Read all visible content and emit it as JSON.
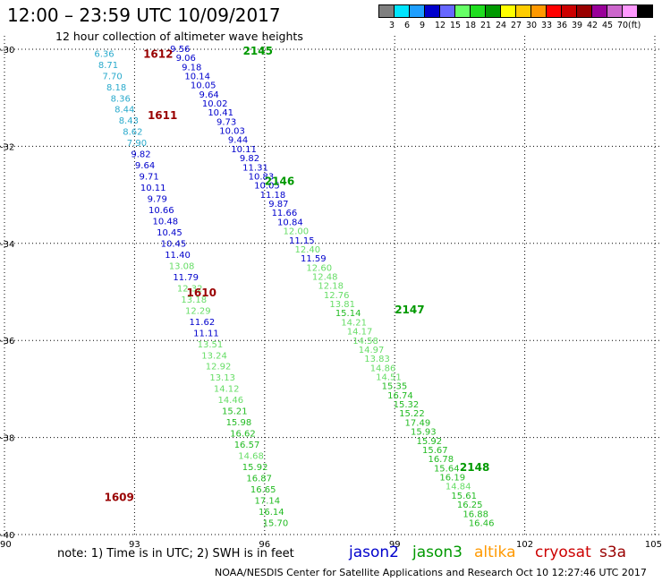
{
  "header": {
    "title": "12:00 – 23:59 UTC 10/09/2017",
    "subtitle": "12 hour collection of altimeter wave heights"
  },
  "colorbar": {
    "colors": [
      "#7f7f7f",
      "#00e5ff",
      "#1f9fff",
      "#0000cc",
      "#6666ff",
      "#66ff66",
      "#1fdd1f",
      "#009900",
      "#ffff00",
      "#ffcc00",
      "#ff9900",
      "#ff0000",
      "#cc0000",
      "#990000",
      "#990099",
      "#cc66cc",
      "#ff99ff",
      "#000000"
    ],
    "labels": [
      "3",
      "6",
      "9",
      "12",
      "15",
      "18",
      "21",
      "24",
      "27",
      "30",
      "33",
      "36",
      "39",
      "42",
      "45",
      "70",
      "(ft)"
    ]
  },
  "footer": {
    "note": "note:  1) Time is in UTC;  2) SWH is in feet",
    "satellites": [
      {
        "name": "jason2",
        "color": "#0000cc"
      },
      {
        "name": "jason3",
        "color": "#009900"
      },
      {
        "name": "altika",
        "color": "#ff9900"
      },
      {
        "name": "cryosat",
        "color": "#cc0000"
      },
      {
        "name": "s3a",
        "color": "#990000"
      }
    ],
    "credit": "NOAA/NESDIS Center for Satellite Applications and Research     Oct 10 12:27:46 UTC 2017"
  },
  "chart_data": {
    "type": "scatter",
    "x_ticks": [
      "90",
      "93",
      "96",
      "99",
      "102",
      "105"
    ],
    "y_ticks": [
      "-30",
      "-32",
      "-34",
      "-36",
      "-38",
      "-40"
    ],
    "xlim": [
      90,
      105
    ],
    "ylim": [
      -40,
      -30
    ],
    "grid": true,
    "pass_labels": [
      {
        "text": "1612",
        "x": 93.2,
        "y": -30.08,
        "color": "#990000"
      },
      {
        "text": "1611",
        "x": 93.3,
        "y": -31.35,
        "color": "#990000"
      },
      {
        "text": "1610",
        "x": 94.2,
        "y": -35.0,
        "color": "#990000"
      },
      {
        "text": "1609",
        "x": 92.3,
        "y": -39.22,
        "color": "#990000"
      },
      {
        "text": "2145",
        "x": 95.5,
        "y": -30.02,
        "color": "#009900"
      },
      {
        "text": "2146",
        "x": 96.0,
        "y": -32.7,
        "color": "#009900"
      },
      {
        "text": "2147",
        "x": 99.0,
        "y": -35.35,
        "color": "#009900"
      },
      {
        "text": "2148",
        "x": 100.5,
        "y": -38.6,
        "color": "#009900"
      }
    ],
    "series": [
      {
        "x_start": 92.3,
        "y_start": -30.08,
        "x_end": 96.25,
        "y_end": -39.75,
        "values": [
          "6.36",
          "8.71",
          "7.70",
          "8.18",
          "8.36",
          "8.44",
          "8.43",
          "8.62",
          "7.90",
          "9.82",
          "9.64",
          "9.71",
          "10.11",
          "9.79",
          "10.66",
          "10.48",
          "10.45",
          "10.45",
          "11.40",
          "13.08",
          "11.79",
          "12.32",
          "13.18",
          "12.29",
          "11.62",
          "11.11",
          "13.51",
          "13.24",
          "12.92",
          "13.13",
          "14.12",
          "14.46",
          "15.21",
          "15.98",
          "16.62",
          "16.57",
          "14.68",
          "15.92",
          "16.87",
          "16.65",
          "17.14",
          "16.14",
          "15.70"
        ]
      },
      {
        "x_start": 94.05,
        "y_start": -29.98,
        "x_end": 101.0,
        "y_end": -39.75,
        "values": [
          "9.56",
          "9.06",
          "9.18",
          "10.14",
          "10.05",
          "9.64",
          "10.02",
          "10.41",
          "9.73",
          "10.03",
          "9.44",
          "10.11",
          "9.82",
          "11.31",
          "10.83",
          "10.05",
          "11.18",
          "9.87",
          "11.66",
          "10.84",
          "12.00",
          "11.15",
          "12.40",
          "11.59",
          "12.60",
          "12.48",
          "12.18",
          "12.76",
          "13.81",
          "15.14",
          "14.21",
          "14.17",
          "14.58",
          "14.97",
          "13.83",
          "14.86",
          "14.51",
          "15.35",
          "16.74",
          "15.32",
          "15.22",
          "17.49",
          "15.93",
          "15.92",
          "15.67",
          "16.78",
          "15.64",
          "16.19",
          "14.84",
          "15.61",
          "16.25",
          "16.88",
          "16.46"
        ]
      }
    ]
  }
}
